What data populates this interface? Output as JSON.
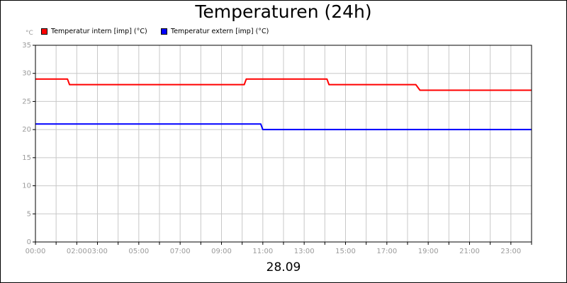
{
  "chart_data": {
    "type": "line",
    "title": "Temperaturen (24h)",
    "y_unit": "°C",
    "xlabel": "28.09",
    "x_range": [
      0,
      24
    ],
    "ylim": [
      0,
      35
    ],
    "y_ticks": [
      0,
      5,
      10,
      15,
      20,
      25,
      30,
      35
    ],
    "x_tick_labels": [
      {
        "hour": 0,
        "label": "00:00"
      },
      {
        "hour": 2,
        "label": "02:00"
      },
      {
        "hour": 3,
        "label": "03:00"
      },
      {
        "hour": 5,
        "label": "05:00"
      },
      {
        "hour": 7,
        "label": "07:00"
      },
      {
        "hour": 9,
        "label": "09:00"
      },
      {
        "hour": 11,
        "label": "11:00"
      },
      {
        "hour": 13,
        "label": "13:00"
      },
      {
        "hour": 15,
        "label": "15:00"
      },
      {
        "hour": 17,
        "label": "17:00"
      },
      {
        "hour": 19,
        "label": "19:00"
      },
      {
        "hour": 21,
        "label": "21:00"
      },
      {
        "hour": 23,
        "label": "23:00"
      }
    ],
    "grid": true,
    "legend_position": "top-left",
    "series": [
      {
        "name": "Temperatur intern [imp] (°C)",
        "color": "#ff0000",
        "points": [
          [
            0,
            29
          ],
          [
            1.55,
            29
          ],
          [
            1.65,
            28
          ],
          [
            10.1,
            28
          ],
          [
            10.2,
            29
          ],
          [
            14.1,
            29
          ],
          [
            14.2,
            28
          ],
          [
            18.4,
            28
          ],
          [
            18.6,
            27
          ],
          [
            24,
            27
          ]
        ]
      },
      {
        "name": "Temperatur extern [imp] (°C)",
        "color": "#0000ff",
        "points": [
          [
            0,
            21
          ],
          [
            10.9,
            21
          ],
          [
            11.0,
            20
          ],
          [
            24,
            20
          ]
        ]
      }
    ]
  }
}
